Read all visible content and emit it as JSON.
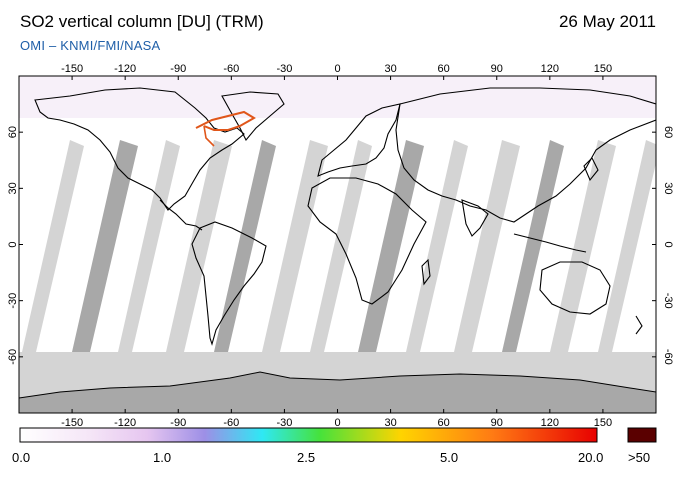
{
  "header": {
    "title": "SO2 vertical column [DU] (TRM)",
    "date": "26 May 2011",
    "subtitle": "OMI  –  KNMI/FMI/NASA"
  },
  "map": {
    "projection": "equirectangular",
    "lon_range": [
      -180,
      180
    ],
    "lat_range": [
      -90,
      90
    ],
    "lon_ticks": [
      -150,
      -120,
      -90,
      -60,
      -30,
      0,
      30,
      60,
      90,
      120,
      150
    ],
    "lon_tick_labels": [
      "-150",
      "-120",
      "-90",
      "-60",
      "-30",
      "0",
      "30",
      "60",
      "90",
      "120",
      "150"
    ],
    "lat_ticks": [
      60,
      30,
      0,
      -30,
      -60
    ],
    "lat_tick_labels": [
      "60",
      "30",
      "0",
      "-30",
      "-60"
    ],
    "colors": {
      "no_data": "#d4d4d4",
      "no_data_dark": "#a8a8a8",
      "coastline": "#000000",
      "hotspot_track": "#e0561a"
    }
  },
  "colorbar": {
    "labels": [
      "0.0",
      "1.0",
      "2.5",
      "5.0",
      "20.0"
    ],
    "overflow_label": ">50",
    "overflow_color": "#5a0000",
    "stops": [
      "#ffffff",
      "#e6c6f0",
      "#9d8fe6",
      "#2fe8f4",
      "#46e23b",
      "#ffd400",
      "#ff7a14",
      "#e80000"
    ]
  }
}
